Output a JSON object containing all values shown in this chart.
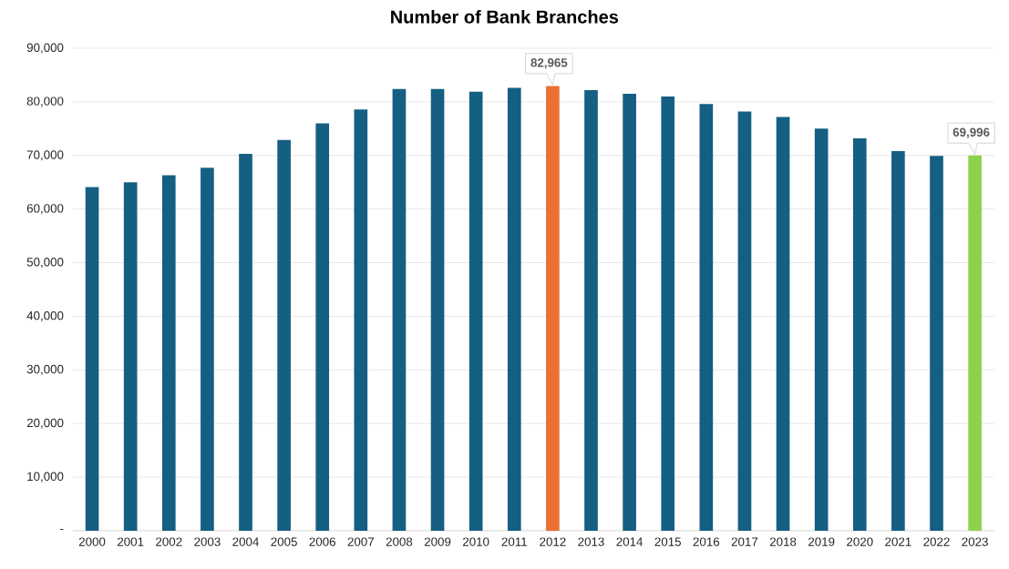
{
  "chart_data": {
    "type": "bar",
    "title": "Number of Bank Branches",
    "categories": [
      "2000",
      "2001",
      "2002",
      "2003",
      "2004",
      "2005",
      "2006",
      "2007",
      "2008",
      "2009",
      "2010",
      "2011",
      "2012",
      "2013",
      "2014",
      "2015",
      "2016",
      "2017",
      "2018",
      "2019",
      "2020",
      "2021",
      "2022",
      "2023"
    ],
    "values": [
      64100,
      65000,
      66300,
      67700,
      70300,
      72900,
      76000,
      78600,
      82400,
      82400,
      81900,
      82600,
      82965,
      82200,
      81500,
      81000,
      79600,
      78200,
      77200,
      75000,
      73200,
      70800,
      69900,
      69996
    ],
    "colors": [
      "#155f82",
      "#155f82",
      "#155f82",
      "#155f82",
      "#155f82",
      "#155f82",
      "#155f82",
      "#155f82",
      "#155f82",
      "#155f82",
      "#155f82",
      "#155f82",
      "#e97132",
      "#155f82",
      "#155f82",
      "#155f82",
      "#155f82",
      "#155f82",
      "#155f82",
      "#155f82",
      "#155f82",
      "#155f82",
      "#155f82",
      "#8ed24b"
    ],
    "value_labels": [
      null,
      null,
      null,
      null,
      null,
      null,
      null,
      null,
      null,
      null,
      null,
      null,
      "82,965",
      null,
      null,
      null,
      null,
      null,
      null,
      null,
      null,
      null,
      null,
      "69,996"
    ],
    "ylim": [
      0,
      90000
    ],
    "yticks": [
      {
        "value": 0,
        "label": "-"
      },
      {
        "value": 10000,
        "label": "10,000"
      },
      {
        "value": 20000,
        "label": "20,000"
      },
      {
        "value": 30000,
        "label": "30,000"
      },
      {
        "value": 40000,
        "label": "40,000"
      },
      {
        "value": 50000,
        "label": "50,000"
      },
      {
        "value": 60000,
        "label": "60,000"
      },
      {
        "value": 70000,
        "label": "70,000"
      },
      {
        "value": 80000,
        "label": "80,000"
      },
      {
        "value": 90000,
        "label": "90,000"
      }
    ],
    "grid": "y"
  }
}
